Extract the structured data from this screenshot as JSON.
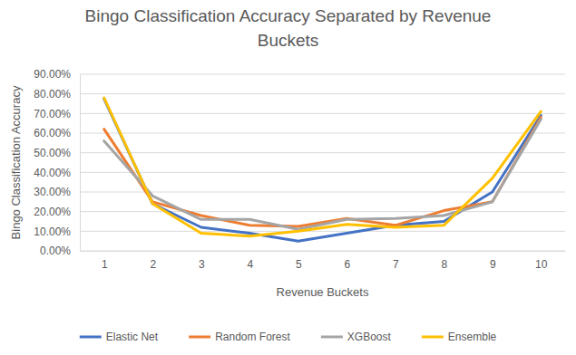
{
  "chart_data": {
    "type": "line",
    "title": "Bingo Classification Accuracy Separated by Revenue Buckets",
    "x_label": "Revenue Buckets",
    "y_label": "Bingo Classification Accuracy",
    "categories": [
      "1",
      "2",
      "3",
      "4",
      "5",
      "6",
      "7",
      "8",
      "9",
      "10"
    ],
    "series": [
      {
        "name": "Elastic Net",
        "color": "#4472c4",
        "line_style": "solid",
        "values": [
          77.5,
          24,
          12,
          9,
          5,
          9,
          13,
          15,
          30,
          69
        ]
      },
      {
        "name": "Random Forest",
        "color": "#ed7d31",
        "line_style": "solid",
        "values": [
          62,
          25,
          18,
          13,
          12.5,
          16.5,
          13,
          20.5,
          25,
          68
        ]
      },
      {
        "name": "XGBoost",
        "color": "#a5a5a5",
        "line_style": "solid",
        "values": [
          56,
          28,
          16,
          16,
          11,
          16,
          16.5,
          18,
          25,
          67
        ]
      },
      {
        "name": "Ensemble",
        "color": "#ffc000",
        "line_style": "solid",
        "values": [
          78,
          24,
          9,
          7.5,
          10,
          13.5,
          12,
          13,
          37,
          71
        ]
      }
    ],
    "ylim": [
      0,
      90
    ],
    "yticks": [
      {
        "value": 0,
        "label": "0.00%"
      },
      {
        "value": 10,
        "label": "10.00%"
      },
      {
        "value": 20,
        "label": "20.00%"
      },
      {
        "value": 30,
        "label": "30.00%"
      },
      {
        "value": 40,
        "label": "40.00%"
      },
      {
        "value": 50,
        "label": "50.00%"
      },
      {
        "value": 60,
        "label": "60.00%"
      },
      {
        "value": 70,
        "label": "70.00%"
      },
      {
        "value": 80,
        "label": "80.00%"
      },
      {
        "value": 90,
        "label": "90.00%"
      }
    ],
    "grid": true,
    "legend": "bottom"
  }
}
